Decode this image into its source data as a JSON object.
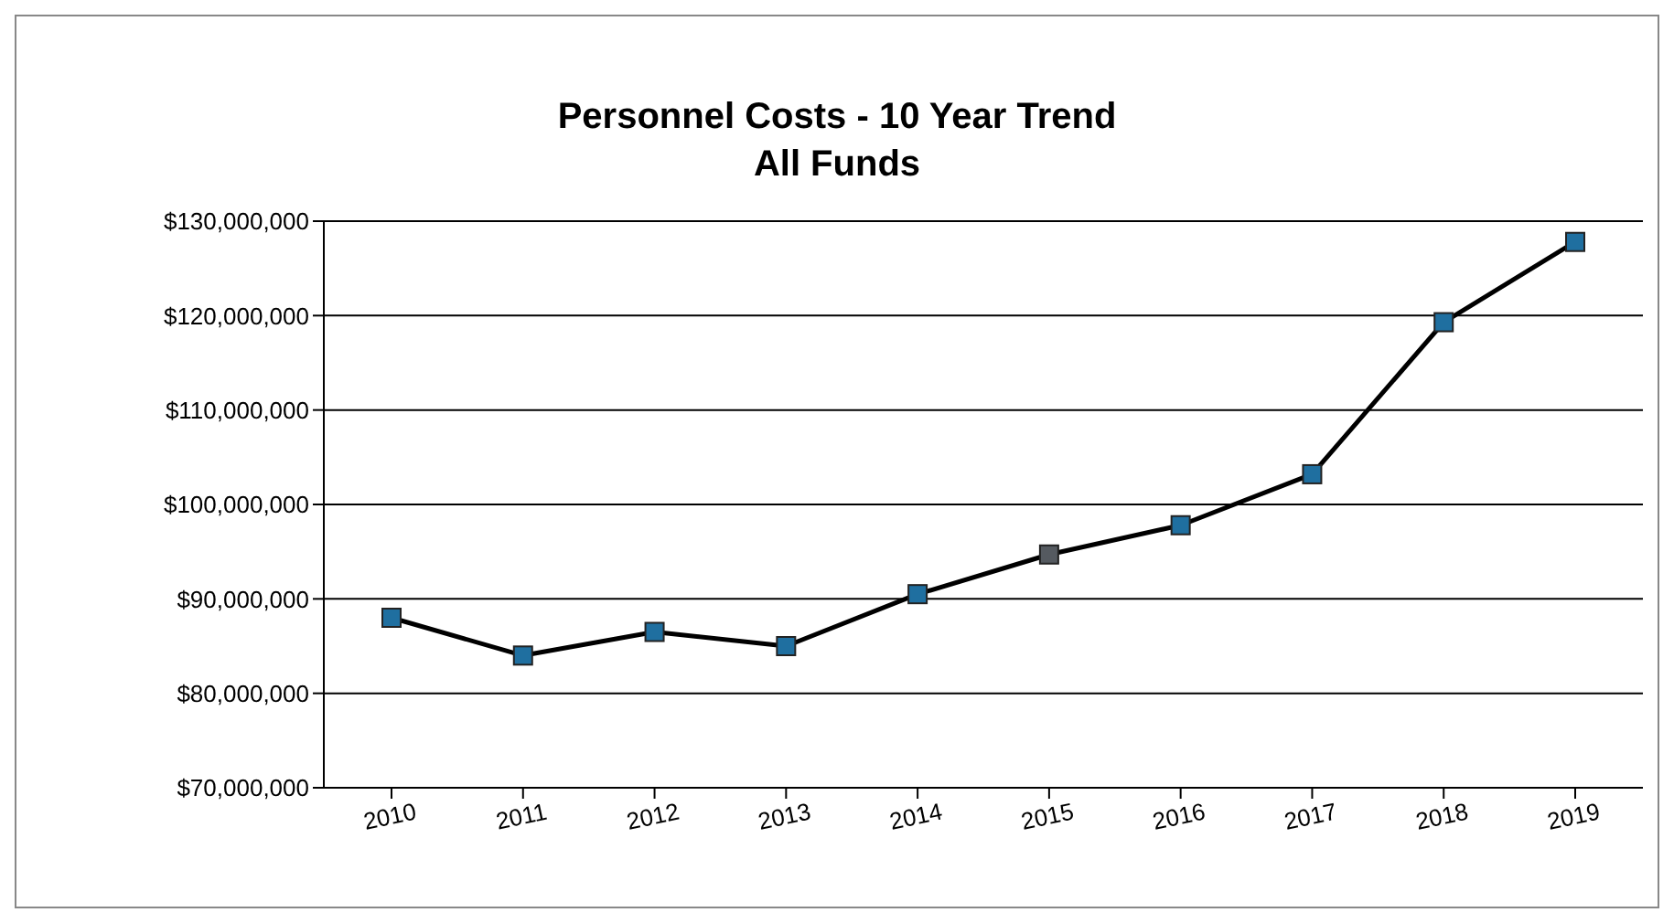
{
  "chart_data": {
    "type": "line",
    "title": "Personnel Costs - 10 Year Trend",
    "subtitle": "All Funds",
    "categories": [
      "2010",
      "2011",
      "2012",
      "2013",
      "2014",
      "2015",
      "2016",
      "2017",
      "2018",
      "2019"
    ],
    "series": [
      {
        "color": "#000000",
        "colors": [
          "#1f6fa0",
          "#1f6fa0",
          "#1f6fa0",
          "#1f6fa0",
          "#1f6fa0",
          "#555a60",
          "#1f6fa0",
          "#1f6fa0",
          "#1f6fa0",
          "#1f6fa0"
        ],
        "values": [
          88000000,
          84000000,
          86500000,
          85000000,
          90500000,
          94700000,
          97800000,
          103200000,
          119300000,
          127800000
        ]
      }
    ],
    "ylim": [
      70000000,
      130000000
    ],
    "yticks": [
      {
        "value": 70000000,
        "label": "$70,000,000"
      },
      {
        "value": 80000000,
        "label": "$80,000,000"
      },
      {
        "value": 90000000,
        "label": "$90,000,000"
      },
      {
        "value": 100000000,
        "label": "$100,000,000"
      },
      {
        "value": 110000000,
        "label": "$110,000,000"
      },
      {
        "value": 120000000,
        "label": "$120,000,000"
      },
      {
        "value": 130000000,
        "label": "$130,000,000"
      }
    ],
    "grid": "y",
    "marker": "square",
    "line_style": "solid"
  }
}
